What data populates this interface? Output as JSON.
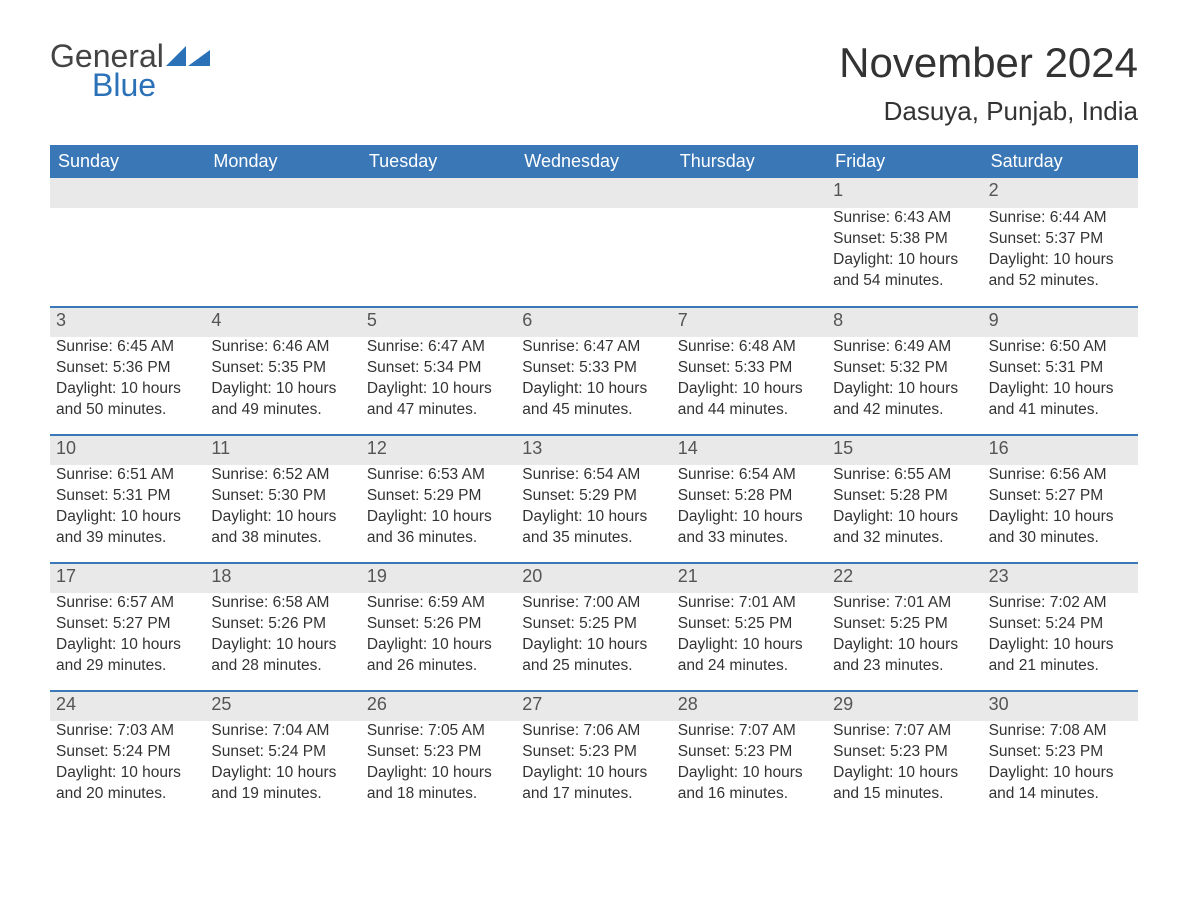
{
  "brand": {
    "word1": "General",
    "word2": "Blue",
    "color_general": "#444444",
    "color_blue": "#2b71b8",
    "icon_fill": "#2b71b8"
  },
  "title": "November 2024",
  "location": "Dasuya, Punjab, India",
  "colors": {
    "header_bg": "#3a77b7",
    "header_fg": "#ffffff",
    "row_divider": "#3a77b7",
    "daynum_bg": "#e9e9e9",
    "text": "#333333",
    "page_bg": "#ffffff"
  },
  "weekdays": [
    "Sunday",
    "Monday",
    "Tuesday",
    "Wednesday",
    "Thursday",
    "Friday",
    "Saturday"
  ],
  "weeks": [
    [
      null,
      null,
      null,
      null,
      null,
      {
        "n": "1",
        "sunrise": "6:43 AM",
        "sunset": "5:38 PM",
        "dlh": "10",
        "dlm": "54"
      },
      {
        "n": "2",
        "sunrise": "6:44 AM",
        "sunset": "5:37 PM",
        "dlh": "10",
        "dlm": "52"
      }
    ],
    [
      {
        "n": "3",
        "sunrise": "6:45 AM",
        "sunset": "5:36 PM",
        "dlh": "10",
        "dlm": "50"
      },
      {
        "n": "4",
        "sunrise": "6:46 AM",
        "sunset": "5:35 PM",
        "dlh": "10",
        "dlm": "49"
      },
      {
        "n": "5",
        "sunrise": "6:47 AM",
        "sunset": "5:34 PM",
        "dlh": "10",
        "dlm": "47"
      },
      {
        "n": "6",
        "sunrise": "6:47 AM",
        "sunset": "5:33 PM",
        "dlh": "10",
        "dlm": "45"
      },
      {
        "n": "7",
        "sunrise": "6:48 AM",
        "sunset": "5:33 PM",
        "dlh": "10",
        "dlm": "44"
      },
      {
        "n": "8",
        "sunrise": "6:49 AM",
        "sunset": "5:32 PM",
        "dlh": "10",
        "dlm": "42"
      },
      {
        "n": "9",
        "sunrise": "6:50 AM",
        "sunset": "5:31 PM",
        "dlh": "10",
        "dlm": "41"
      }
    ],
    [
      {
        "n": "10",
        "sunrise": "6:51 AM",
        "sunset": "5:31 PM",
        "dlh": "10",
        "dlm": "39"
      },
      {
        "n": "11",
        "sunrise": "6:52 AM",
        "sunset": "5:30 PM",
        "dlh": "10",
        "dlm": "38"
      },
      {
        "n": "12",
        "sunrise": "6:53 AM",
        "sunset": "5:29 PM",
        "dlh": "10",
        "dlm": "36"
      },
      {
        "n": "13",
        "sunrise": "6:54 AM",
        "sunset": "5:29 PM",
        "dlh": "10",
        "dlm": "35"
      },
      {
        "n": "14",
        "sunrise": "6:54 AM",
        "sunset": "5:28 PM",
        "dlh": "10",
        "dlm": "33"
      },
      {
        "n": "15",
        "sunrise": "6:55 AM",
        "sunset": "5:28 PM",
        "dlh": "10",
        "dlm": "32"
      },
      {
        "n": "16",
        "sunrise": "6:56 AM",
        "sunset": "5:27 PM",
        "dlh": "10",
        "dlm": "30"
      }
    ],
    [
      {
        "n": "17",
        "sunrise": "6:57 AM",
        "sunset": "5:27 PM",
        "dlh": "10",
        "dlm": "29"
      },
      {
        "n": "18",
        "sunrise": "6:58 AM",
        "sunset": "5:26 PM",
        "dlh": "10",
        "dlm": "28"
      },
      {
        "n": "19",
        "sunrise": "6:59 AM",
        "sunset": "5:26 PM",
        "dlh": "10",
        "dlm": "26"
      },
      {
        "n": "20",
        "sunrise": "7:00 AM",
        "sunset": "5:25 PM",
        "dlh": "10",
        "dlm": "25"
      },
      {
        "n": "21",
        "sunrise": "7:01 AM",
        "sunset": "5:25 PM",
        "dlh": "10",
        "dlm": "24"
      },
      {
        "n": "22",
        "sunrise": "7:01 AM",
        "sunset": "5:25 PM",
        "dlh": "10",
        "dlm": "23"
      },
      {
        "n": "23",
        "sunrise": "7:02 AM",
        "sunset": "5:24 PM",
        "dlh": "10",
        "dlm": "21"
      }
    ],
    [
      {
        "n": "24",
        "sunrise": "7:03 AM",
        "sunset": "5:24 PM",
        "dlh": "10",
        "dlm": "20"
      },
      {
        "n": "25",
        "sunrise": "7:04 AM",
        "sunset": "5:24 PM",
        "dlh": "10",
        "dlm": "19"
      },
      {
        "n": "26",
        "sunrise": "7:05 AM",
        "sunset": "5:23 PM",
        "dlh": "10",
        "dlm": "18"
      },
      {
        "n": "27",
        "sunrise": "7:06 AM",
        "sunset": "5:23 PM",
        "dlh": "10",
        "dlm": "17"
      },
      {
        "n": "28",
        "sunrise": "7:07 AM",
        "sunset": "5:23 PM",
        "dlh": "10",
        "dlm": "16"
      },
      {
        "n": "29",
        "sunrise": "7:07 AM",
        "sunset": "5:23 PM",
        "dlh": "10",
        "dlm": "15"
      },
      {
        "n": "30",
        "sunrise": "7:08 AM",
        "sunset": "5:23 PM",
        "dlh": "10",
        "dlm": "14"
      }
    ]
  ],
  "labels": {
    "sunrise_prefix": "Sunrise: ",
    "sunset_prefix": "Sunset: ",
    "daylight_prefix": "Daylight: ",
    "hours_word": " hours",
    "and_word": "and ",
    "minutes_word": " minutes."
  }
}
